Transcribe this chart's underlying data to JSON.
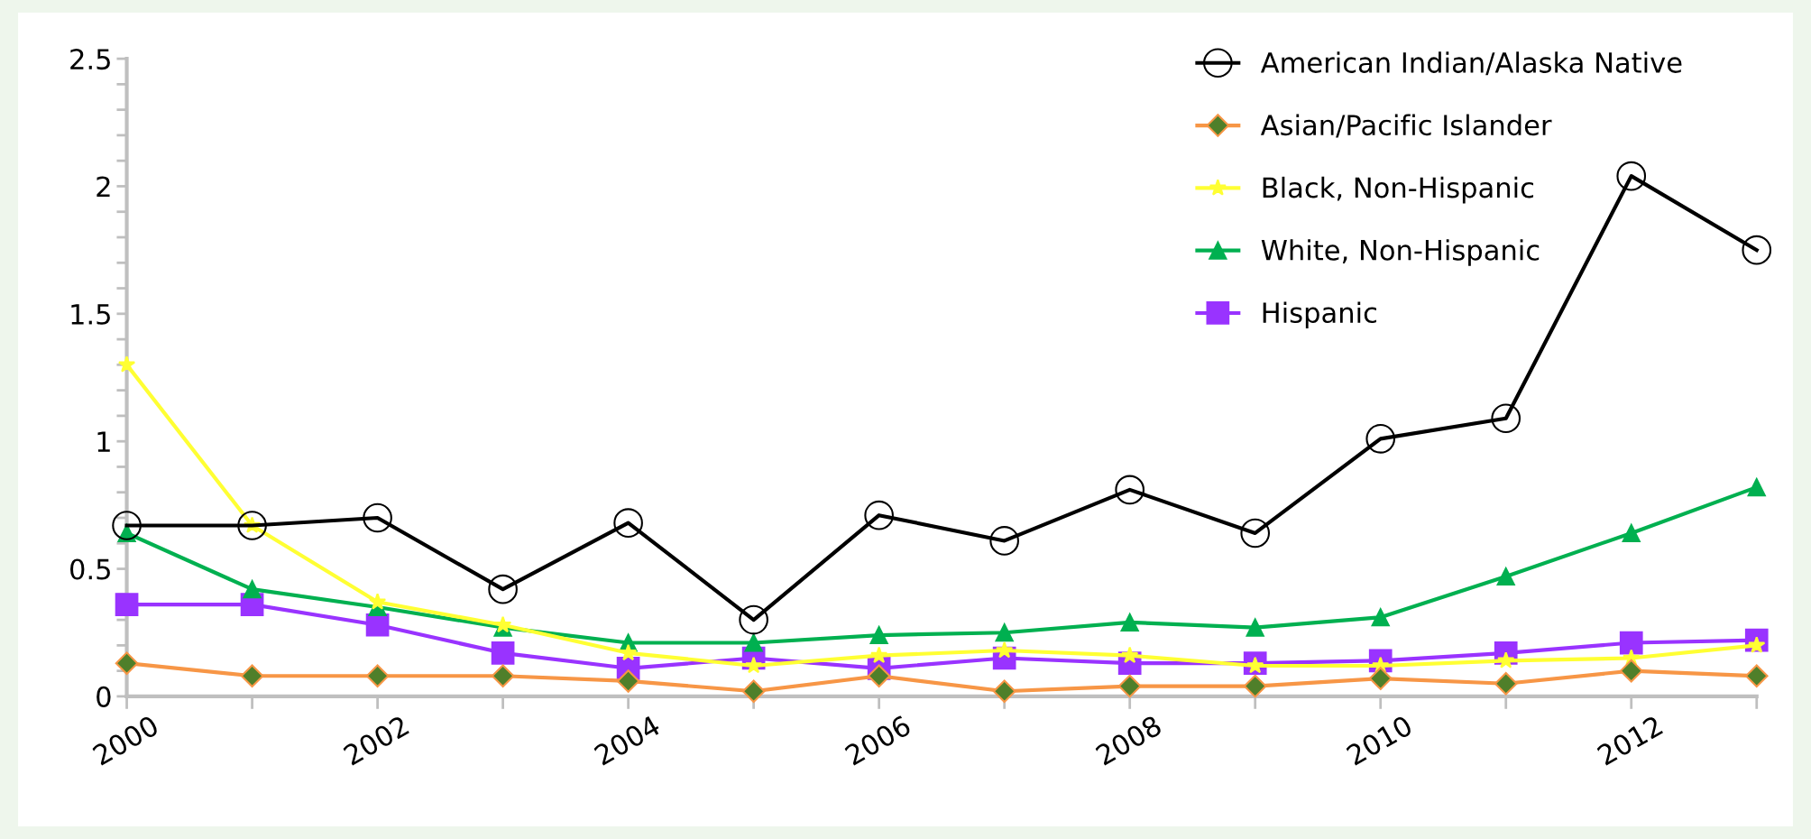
{
  "chart_data": {
    "type": "line",
    "x": [
      2000,
      2001,
      2002,
      2003,
      2004,
      2005,
      2006,
      2007,
      2008,
      2009,
      2010,
      2011,
      2012,
      2013
    ],
    "xlim": [
      2000,
      2013
    ],
    "xticks": [
      2000,
      {
        "value": 2001,
        "label": null
      },
      2002,
      {
        "value": 2003,
        "label": null
      },
      2004,
      {
        "value": 2005,
        "label": null
      },
      2006,
      {
        "value": 2007,
        "label": null
      },
      2008,
      {
        "value": 2009,
        "label": null
      },
      2010,
      {
        "value": 2011,
        "label": null
      },
      2012,
      {
        "value": 2013,
        "label": null
      }
    ],
    "ylim": [
      0,
      2.5
    ],
    "yticks": [
      0,
      {
        "value": 0.1,
        "label": null
      },
      {
        "value": 0.2,
        "label": null
      },
      {
        "value": 0.3,
        "label": null
      },
      {
        "value": 0.4,
        "label": null
      },
      0.5,
      {
        "value": 0.6,
        "label": null
      },
      {
        "value": 0.7,
        "label": null
      },
      {
        "value": 0.8,
        "label": null
      },
      {
        "value": 0.9,
        "label": null
      },
      1,
      {
        "value": 1.1,
        "label": null
      },
      {
        "value": 1.2,
        "label": null
      },
      {
        "value": 1.3,
        "label": null
      },
      {
        "value": 1.4,
        "label": null
      },
      1.5,
      {
        "value": 1.6,
        "label": null
      },
      {
        "value": 1.7,
        "label": null
      },
      {
        "value": 1.8,
        "label": null
      },
      {
        "value": 1.9,
        "label": null
      },
      2,
      {
        "value": 2.1,
        "label": null
      },
      {
        "value": 2.2,
        "label": null
      },
      {
        "value": 2.3,
        "label": null
      },
      {
        "value": 2.4,
        "label": null
      },
      2.5
    ],
    "grid": false,
    "legend": "top right",
    "line_style": "solid",
    "series": [
      {
        "name": "American Indian/Alaska Native",
        "color": "#000000",
        "marker": "circle",
        "values": [
          0.67,
          0.67,
          0.7,
          0.42,
          0.68,
          0.3,
          0.71,
          0.61,
          0.81,
          0.64,
          1.01,
          1.09,
          2.04,
          1.75
        ]
      },
      {
        "name": "Asian/Pacific Islander",
        "color": "#f79646",
        "marker": "diamond",
        "values": [
          0.13,
          0.08,
          0.08,
          0.08,
          0.06,
          0.02,
          0.08,
          0.02,
          0.04,
          0.04,
          0.07,
          0.05,
          0.1,
          0.08
        ]
      },
      {
        "name": "Black, Non-Hispanic",
        "color": "#ffff33",
        "marker": "star",
        "values": [
          1.3,
          0.67,
          0.37,
          0.28,
          0.17,
          0.12,
          0.16,
          0.18,
          0.16,
          0.12,
          0.12,
          0.14,
          0.15,
          0.2
        ]
      },
      {
        "name": "White, Non-Hispanic",
        "color": "#00b050",
        "marker": "triangle",
        "values": [
          0.64,
          0.42,
          0.35,
          0.27,
          0.21,
          0.21,
          0.24,
          0.25,
          0.29,
          0.27,
          0.31,
          0.47,
          0.64,
          0.82
        ]
      },
      {
        "name": "Hispanic",
        "color": "#9933ff",
        "marker": "square",
        "values": [
          0.36,
          0.36,
          0.28,
          0.17,
          0.11,
          0.15,
          0.11,
          0.15,
          0.13,
          0.13,
          0.14,
          0.17,
          0.21,
          0.22
        ]
      }
    ]
  }
}
